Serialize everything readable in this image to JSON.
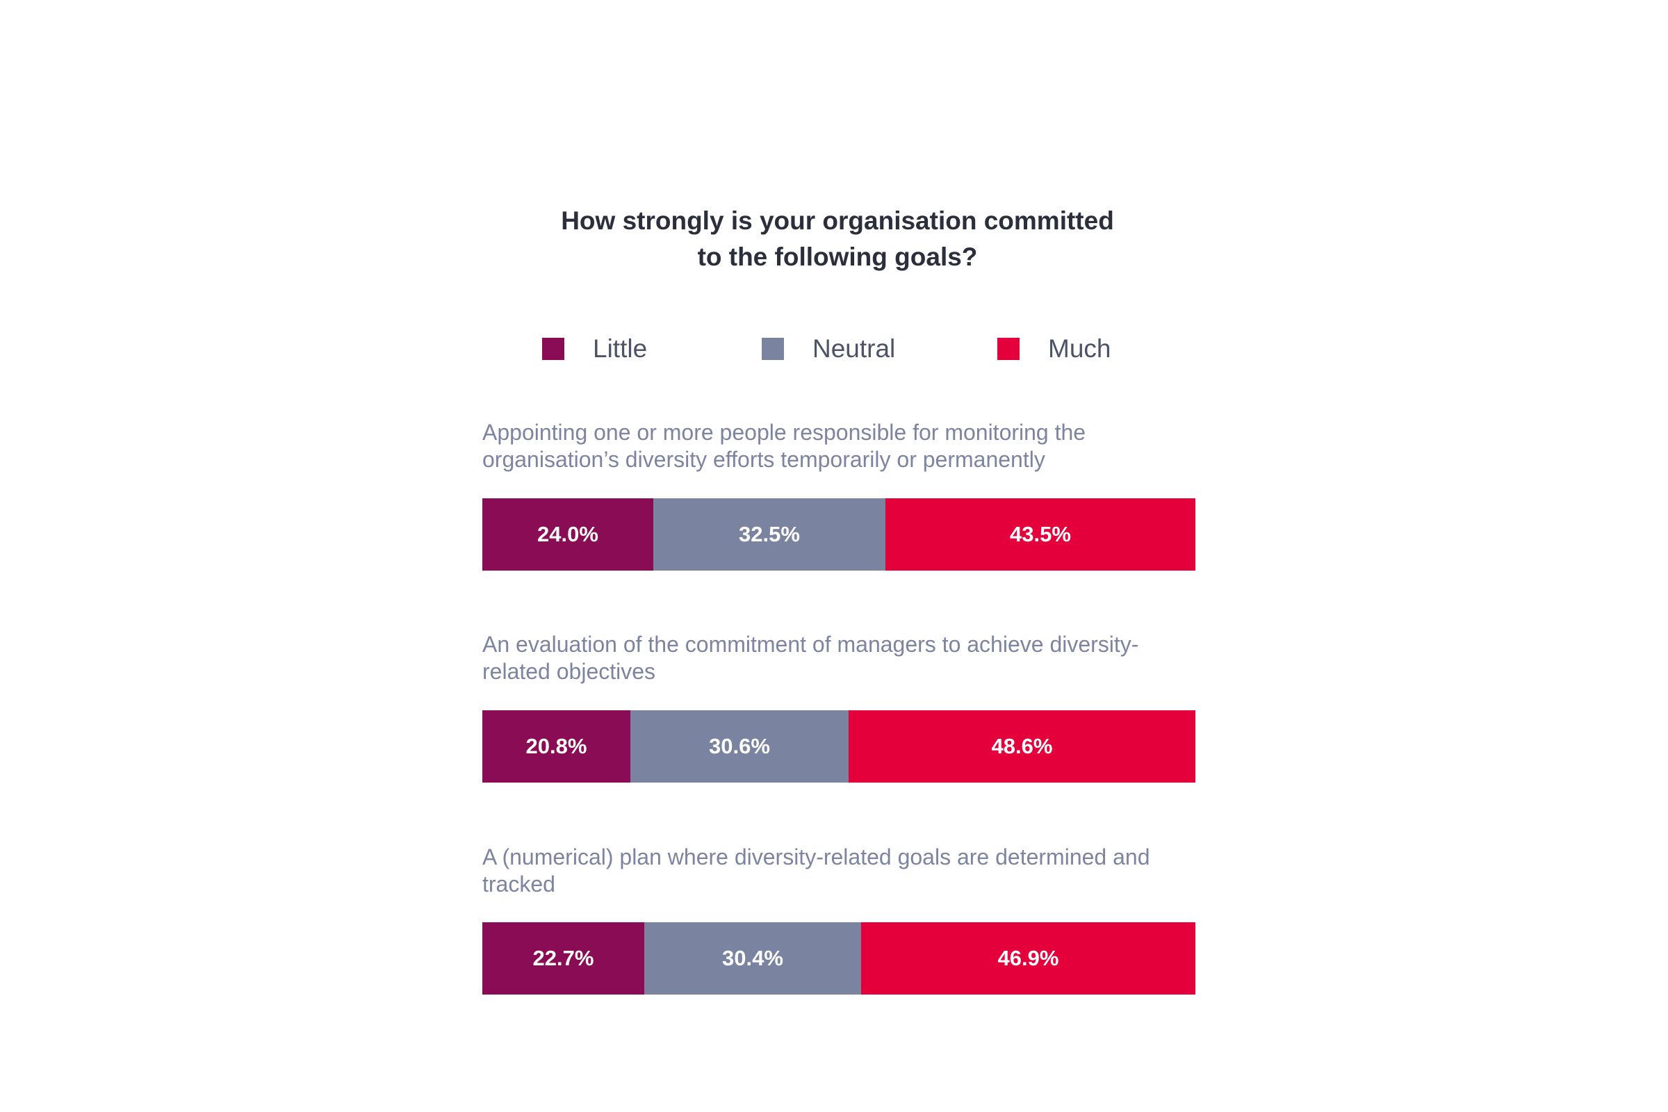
{
  "chart_data": {
    "type": "bar",
    "orientation": "horizontal",
    "stacked": true,
    "title_lines": [
      "How strongly is your organisation committed",
      "to the following goals?"
    ],
    "legend": [
      {
        "name": "Little",
        "color": "#8a0c55"
      },
      {
        "name": "Neutral",
        "color": "#7a84a0"
      },
      {
        "name": "Much",
        "color": "#e4003a"
      }
    ],
    "categories": [
      {
        "label_lines": [
          "Appointing one or more people responsible for monitoring the",
          "organisation’s diversity efforts temporarily or permanently"
        ],
        "values": [
          24.0,
          32.5,
          43.5
        ],
        "value_labels": [
          "24.0%",
          "32.5%",
          "43.5%"
        ]
      },
      {
        "label_lines": [
          "An evaluation of the commitment of managers to achieve diversity-",
          "related objectives"
        ],
        "values": [
          20.8,
          30.6,
          48.6
        ],
        "value_labels": [
          "20.8%",
          "30.6%",
          "48.6%"
        ]
      },
      {
        "label_lines": [
          "A (numerical) plan where diversity-related goals are determined and",
          "tracked"
        ],
        "values": [
          22.7,
          30.4,
          46.9
        ],
        "value_labels": [
          "22.7%",
          "30.4%",
          "46.9%"
        ]
      }
    ],
    "xlim": [
      0,
      100
    ],
    "unit": "%"
  }
}
